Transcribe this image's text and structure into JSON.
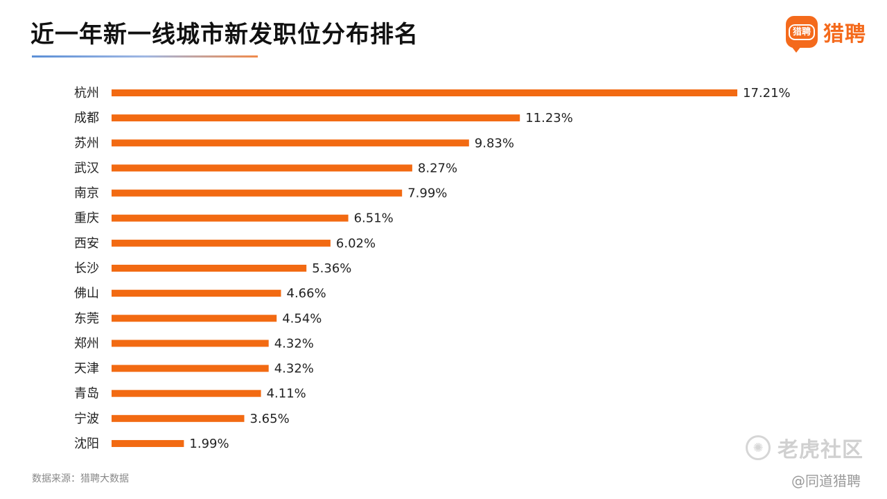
{
  "page": {
    "title": "近一年新一线城市新发职位分布排名",
    "source": "数据来源：猎聘大数据"
  },
  "logo": {
    "icon_text": "猎聘",
    "brand": "猎聘",
    "color": "#f46a1c"
  },
  "watermark": {
    "icon": "tiger-swirl-icon",
    "main": "老虎社区",
    "sub": "@同道猎聘"
  },
  "chart_data": {
    "type": "bar",
    "orientation": "horizontal",
    "title": "近一年新一线城市新发职位分布排名",
    "xlabel": "",
    "ylabel": "",
    "categories": [
      "杭州",
      "成都",
      "苏州",
      "武汉",
      "南京",
      "重庆",
      "西安",
      "长沙",
      "佛山",
      "东莞",
      "郑州",
      "天津",
      "青岛",
      "宁波",
      "沈阳"
    ],
    "values": [
      17.21,
      11.23,
      9.83,
      8.27,
      7.99,
      6.51,
      6.02,
      5.36,
      4.66,
      4.54,
      4.32,
      4.32,
      4.11,
      3.65,
      1.99
    ],
    "value_labels": [
      "17.21%",
      "11.23%",
      "9.83%",
      "8.27%",
      "7.99%",
      "6.51%",
      "6.02%",
      "5.36%",
      "4.66%",
      "4.54%",
      "4.32%",
      "4.32%",
      "4.11%",
      "3.65%",
      "1.99%"
    ],
    "unit": "%",
    "bar_color": "#f26a12",
    "grid": false,
    "legend": "none"
  }
}
